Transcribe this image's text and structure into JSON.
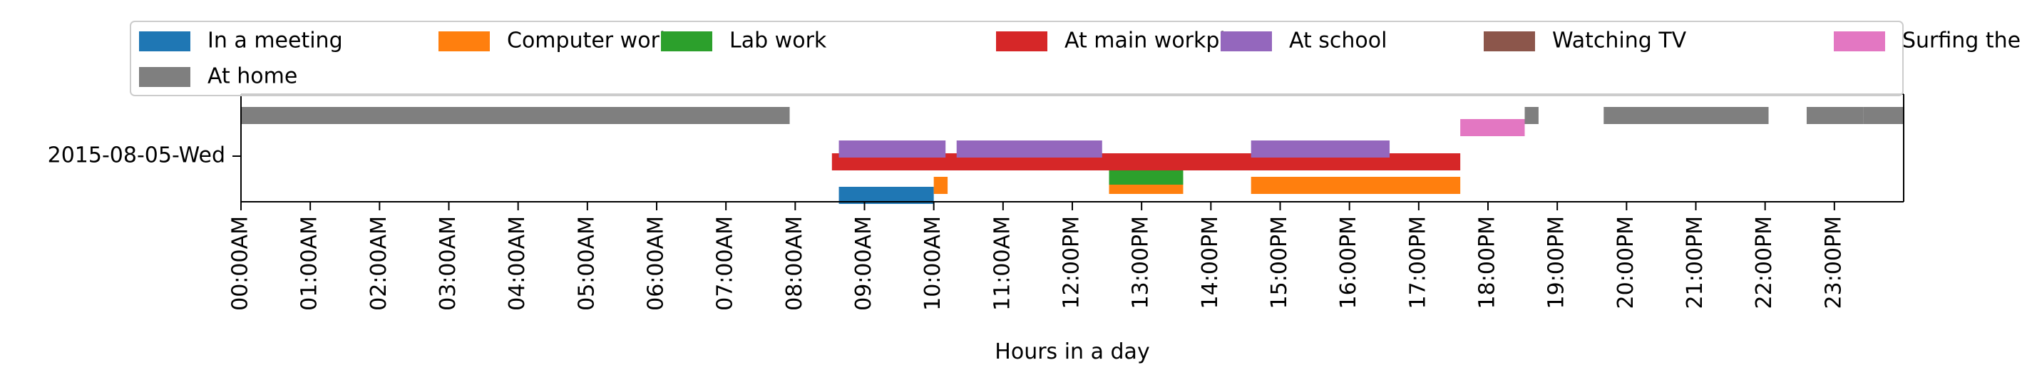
{
  "chart_data": {
    "type": "timeline",
    "xlabel": "Hours in a day",
    "ylabel": "",
    "xlim": [
      0,
      24
    ],
    "row_label": "2015-08-05-Wed",
    "x_ticks": [
      {
        "hour": 0,
        "label": "00:00AM"
      },
      {
        "hour": 1,
        "label": "01:00AM"
      },
      {
        "hour": 2,
        "label": "02:00AM"
      },
      {
        "hour": 3,
        "label": "03:00AM"
      },
      {
        "hour": 4,
        "label": "04:00AM"
      },
      {
        "hour": 5,
        "label": "05:00AM"
      },
      {
        "hour": 6,
        "label": "06:00AM"
      },
      {
        "hour": 7,
        "label": "07:00AM"
      },
      {
        "hour": 8,
        "label": "08:00AM"
      },
      {
        "hour": 9,
        "label": "09:00AM"
      },
      {
        "hour": 10,
        "label": "10:00AM"
      },
      {
        "hour": 11,
        "label": "11:00AM"
      },
      {
        "hour": 12,
        "label": "12:00PM"
      },
      {
        "hour": 13,
        "label": "13:00PM"
      },
      {
        "hour": 14,
        "label": "14:00PM"
      },
      {
        "hour": 15,
        "label": "15:00PM"
      },
      {
        "hour": 16,
        "label": "16:00PM"
      },
      {
        "hour": 17,
        "label": "17:00PM"
      },
      {
        "hour": 18,
        "label": "18:00PM"
      },
      {
        "hour": 19,
        "label": "19:00PM"
      },
      {
        "hour": 20,
        "label": "20:00PM"
      },
      {
        "hour": 21,
        "label": "21:00PM"
      },
      {
        "hour": 22,
        "label": "22:00PM"
      },
      {
        "hour": 23,
        "label": "23:00PM"
      }
    ],
    "legend_position": "top",
    "series": [
      {
        "name": "In a meeting",
        "color": "#1f77b4",
        "intervals": [
          [
            8.63,
            10.0
          ]
        ]
      },
      {
        "name": "Computer work",
        "color": "#ff7f0e",
        "intervals": [
          [
            10.0,
            10.2
          ],
          [
            12.53,
            13.6
          ],
          [
            14.58,
            17.6
          ]
        ]
      },
      {
        "name": "Lab work",
        "color": "#2ca02c",
        "intervals": [
          [
            12.53,
            13.6
          ]
        ]
      },
      {
        "name": "At main workplace",
        "color": "#d62728",
        "intervals": [
          [
            8.53,
            17.6
          ]
        ]
      },
      {
        "name": "At school",
        "color": "#9467bd",
        "intervals": [
          [
            8.63,
            10.17
          ],
          [
            10.33,
            12.43
          ],
          [
            14.58,
            16.58
          ]
        ]
      },
      {
        "name": "Watching TV",
        "color": "#8c564b",
        "intervals": []
      },
      {
        "name": "Surfing the internet",
        "color": "#e377c2",
        "intervals": [
          [
            17.6,
            18.53
          ]
        ]
      },
      {
        "name": "At home",
        "color": "#7f7f7f",
        "intervals": [
          [
            0.0,
            7.92
          ],
          [
            18.53,
            18.73
          ],
          [
            19.67,
            22.05
          ],
          [
            22.6,
            23.42
          ],
          [
            23.42,
            24.0
          ]
        ]
      }
    ]
  }
}
